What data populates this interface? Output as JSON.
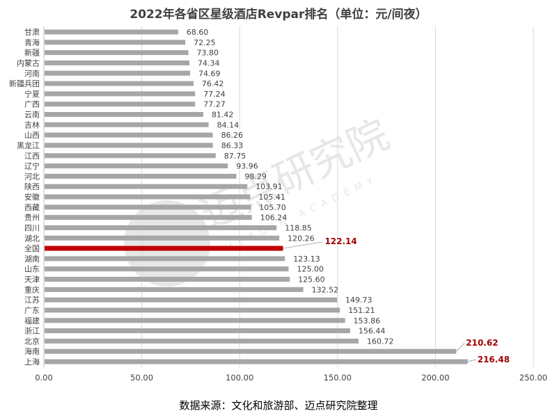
{
  "chart_data": {
    "type": "bar",
    "orientation": "horizontal",
    "title": "2022年各省区星级酒店Revpar排名（单位：元/间夜）",
    "source": "数据来源：文化和旅游部、迈点研究院整理",
    "xlabel": "",
    "ylabel": "",
    "xlim": [
      0,
      250
    ],
    "xticks": [
      "0.00",
      "50.00",
      "100.00",
      "150.00",
      "200.00",
      "250.00"
    ],
    "xtick_values": [
      0,
      50,
      100,
      150,
      200,
      250
    ],
    "grid": true,
    "categories": [
      "甘肃",
      "青海",
      "新疆",
      "内蒙古",
      "河南",
      "新疆兵团",
      "宁夏",
      "广西",
      "云南",
      "吉林",
      "山西",
      "黑龙江",
      "江西",
      "辽宁",
      "河北",
      "陕西",
      "安徽",
      "西藏",
      "贵州",
      "四川",
      "湖北",
      "全国",
      "湖南",
      "山东",
      "天津",
      "重庆",
      "江苏",
      "广东",
      "福建",
      "浙江",
      "北京",
      "海南",
      "上海"
    ],
    "values": [
      68.6,
      72.25,
      73.8,
      74.34,
      74.69,
      76.42,
      77.24,
      77.27,
      81.42,
      84.14,
      86.26,
      86.33,
      87.75,
      93.96,
      98.29,
      103.91,
      105.41,
      105.7,
      106.24,
      118.85,
      120.26,
      122.14,
      123.13,
      125.0,
      125.6,
      132.52,
      149.73,
      151.21,
      153.86,
      156.44,
      160.72,
      210.62,
      216.48
    ],
    "labels": [
      "68.60",
      "72.25",
      "73.80",
      "74.34",
      "74.69",
      "76.42",
      "77.24",
      "77.27",
      "81.42",
      "84.14",
      "86.26",
      "86.33",
      "87.75",
      "93.96",
      "98.29",
      "103.91",
      "105.41",
      "105.70",
      "106.24",
      "118.85",
      "120.26",
      "122.14",
      "123.13",
      "125.00",
      "125.60",
      "132.52",
      "149.73",
      "151.21",
      "153.86",
      "156.44",
      "160.72",
      "210.62",
      "216.48"
    ],
    "highlighted": [
      "全国",
      "海南",
      "上海"
    ],
    "colors": {
      "bar": "#a6a6a6",
      "highlight_bar": "#c00000",
      "highlight_label": "#a50000",
      "grid": "#d9d9d9"
    }
  },
  "watermark": {
    "text": "迈点研究院",
    "subtext": "MEADIN ACADEMY"
  }
}
